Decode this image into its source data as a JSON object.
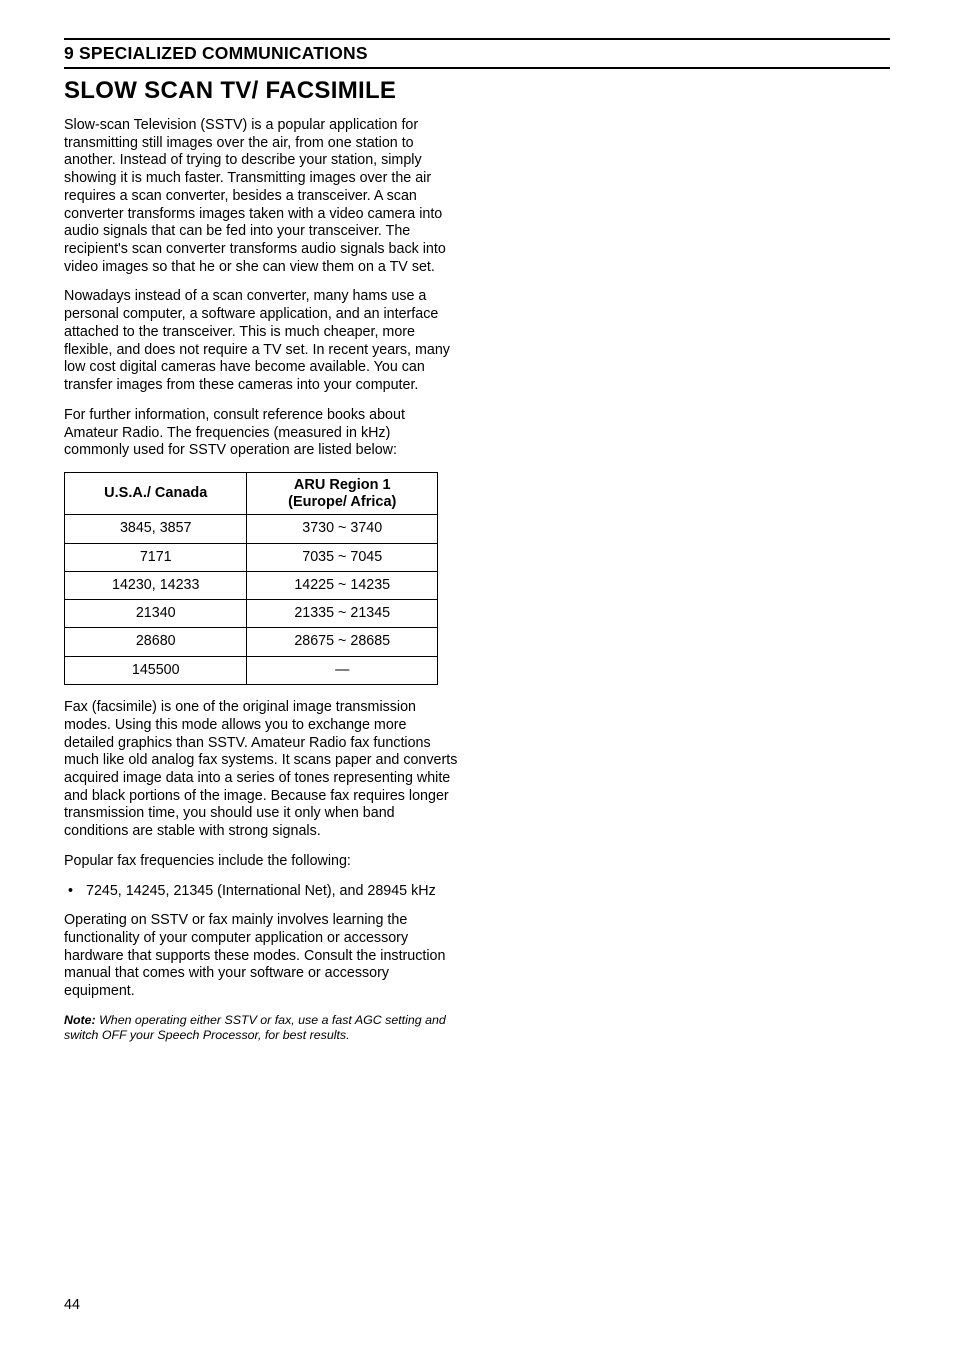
{
  "chapter": {
    "label": "9  SPECIALIZED COMMUNICATIONS"
  },
  "section": {
    "title": "SLOW SCAN TV/ FACSIMILE"
  },
  "paras": {
    "p1": "Slow-scan Television (SSTV) is a popular application for transmitting still images over the air, from one station to another.  Instead of trying to describe your station, simply showing it is much faster.  Transmitting images over the air requires a scan converter, besides a transceiver.  A scan converter transforms images taken with a video camera into audio signals that can be fed into your transceiver.  The recipient's scan converter transforms audio signals back into video images so that he or she can view them on a TV set.",
    "p2": "Nowadays instead of a scan converter, many hams use a personal computer, a software application, and an interface attached to the transceiver.  This is much cheaper, more flexible, and does not require a TV set.  In recent years, many low cost digital cameras have become available.  You can transfer images from these cameras into your computer.",
    "p3": "For further information, consult reference books about Amateur Radio.  The frequencies (measured in kHz) commonly used for SSTV operation are listed below:",
    "p4": "Fax (facsimile) is one of the original image transmission modes.  Using this mode allows you to exchange more detailed graphics than SSTV.  Amateur Radio fax functions much like old analog fax systems.  It scans paper and converts acquired image data into a series of tones representing white and black portions of the image.  Because fax requires longer transmission time, you should use it only when band conditions are stable with strong signals.",
    "p5": "Popular fax frequencies include the following:",
    "p6": "Operating on SSTV or fax mainly involves learning the functionality of your computer application or accessory hardware that supports these modes.  Consult the instruction manual that comes with your software or accessory equipment."
  },
  "table": {
    "headers": {
      "col1": "U.S.A./ Canada",
      "col2_line1": "ARU Region 1",
      "col2_line2": "(Europe/ Africa)"
    },
    "rows": [
      {
        "c1": "3845, 3857",
        "c2": "3730 ~ 3740"
      },
      {
        "c1": "7171",
        "c2": "7035 ~ 7045"
      },
      {
        "c1": "14230, 14233",
        "c2": "14225 ~ 14235"
      },
      {
        "c1": "21340",
        "c2": "21335 ~ 21345"
      },
      {
        "c1": "28680",
        "c2": "28675 ~ 28685"
      },
      {
        "c1": "145500",
        "c2": "—"
      }
    ]
  },
  "bullets": {
    "b1": "7245, 14245, 21345 (International Net), and 28945 kHz"
  },
  "note": {
    "label": "Note:",
    "text": "  When operating either SSTV or fax, use a fast AGC setting and switch OFF your Speech Processor, for best results."
  },
  "page": {
    "number": "44"
  }
}
